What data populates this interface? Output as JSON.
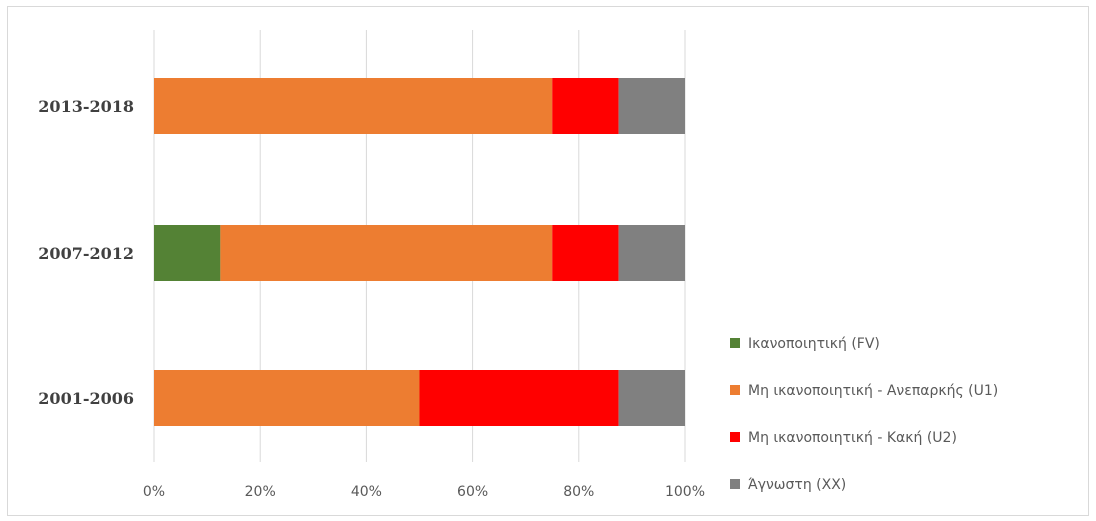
{
  "chart_data": {
    "type": "bar",
    "orientation": "horizontal",
    "stacked": "percent",
    "categories": [
      "2013-2018",
      "2007-2012",
      "2001-2006"
    ],
    "series": [
      {
        "name": "Ικανοποιητική (FV)",
        "color": "#548235",
        "values": [
          0,
          12.5,
          0
        ]
      },
      {
        "name": "Μη ικανοποιητική - Ανεπαρκής (U1)",
        "color": "#ed7d31",
        "values": [
          75,
          62.5,
          50
        ]
      },
      {
        "name": "Μη ικανοποιητική - Κακή (U2)",
        "color": "#ff0000",
        "values": [
          12.5,
          12.5,
          37.5
        ]
      },
      {
        "name": "Άγνωστη (XX)",
        "color": "#808080",
        "values": [
          12.5,
          12.5,
          12.5
        ]
      }
    ],
    "xlim": [
      0,
      100
    ],
    "xticks": [
      "0%",
      "20%",
      "40%",
      "60%",
      "80%",
      "100%"
    ],
    "grid": true,
    "legend_position": "right"
  }
}
